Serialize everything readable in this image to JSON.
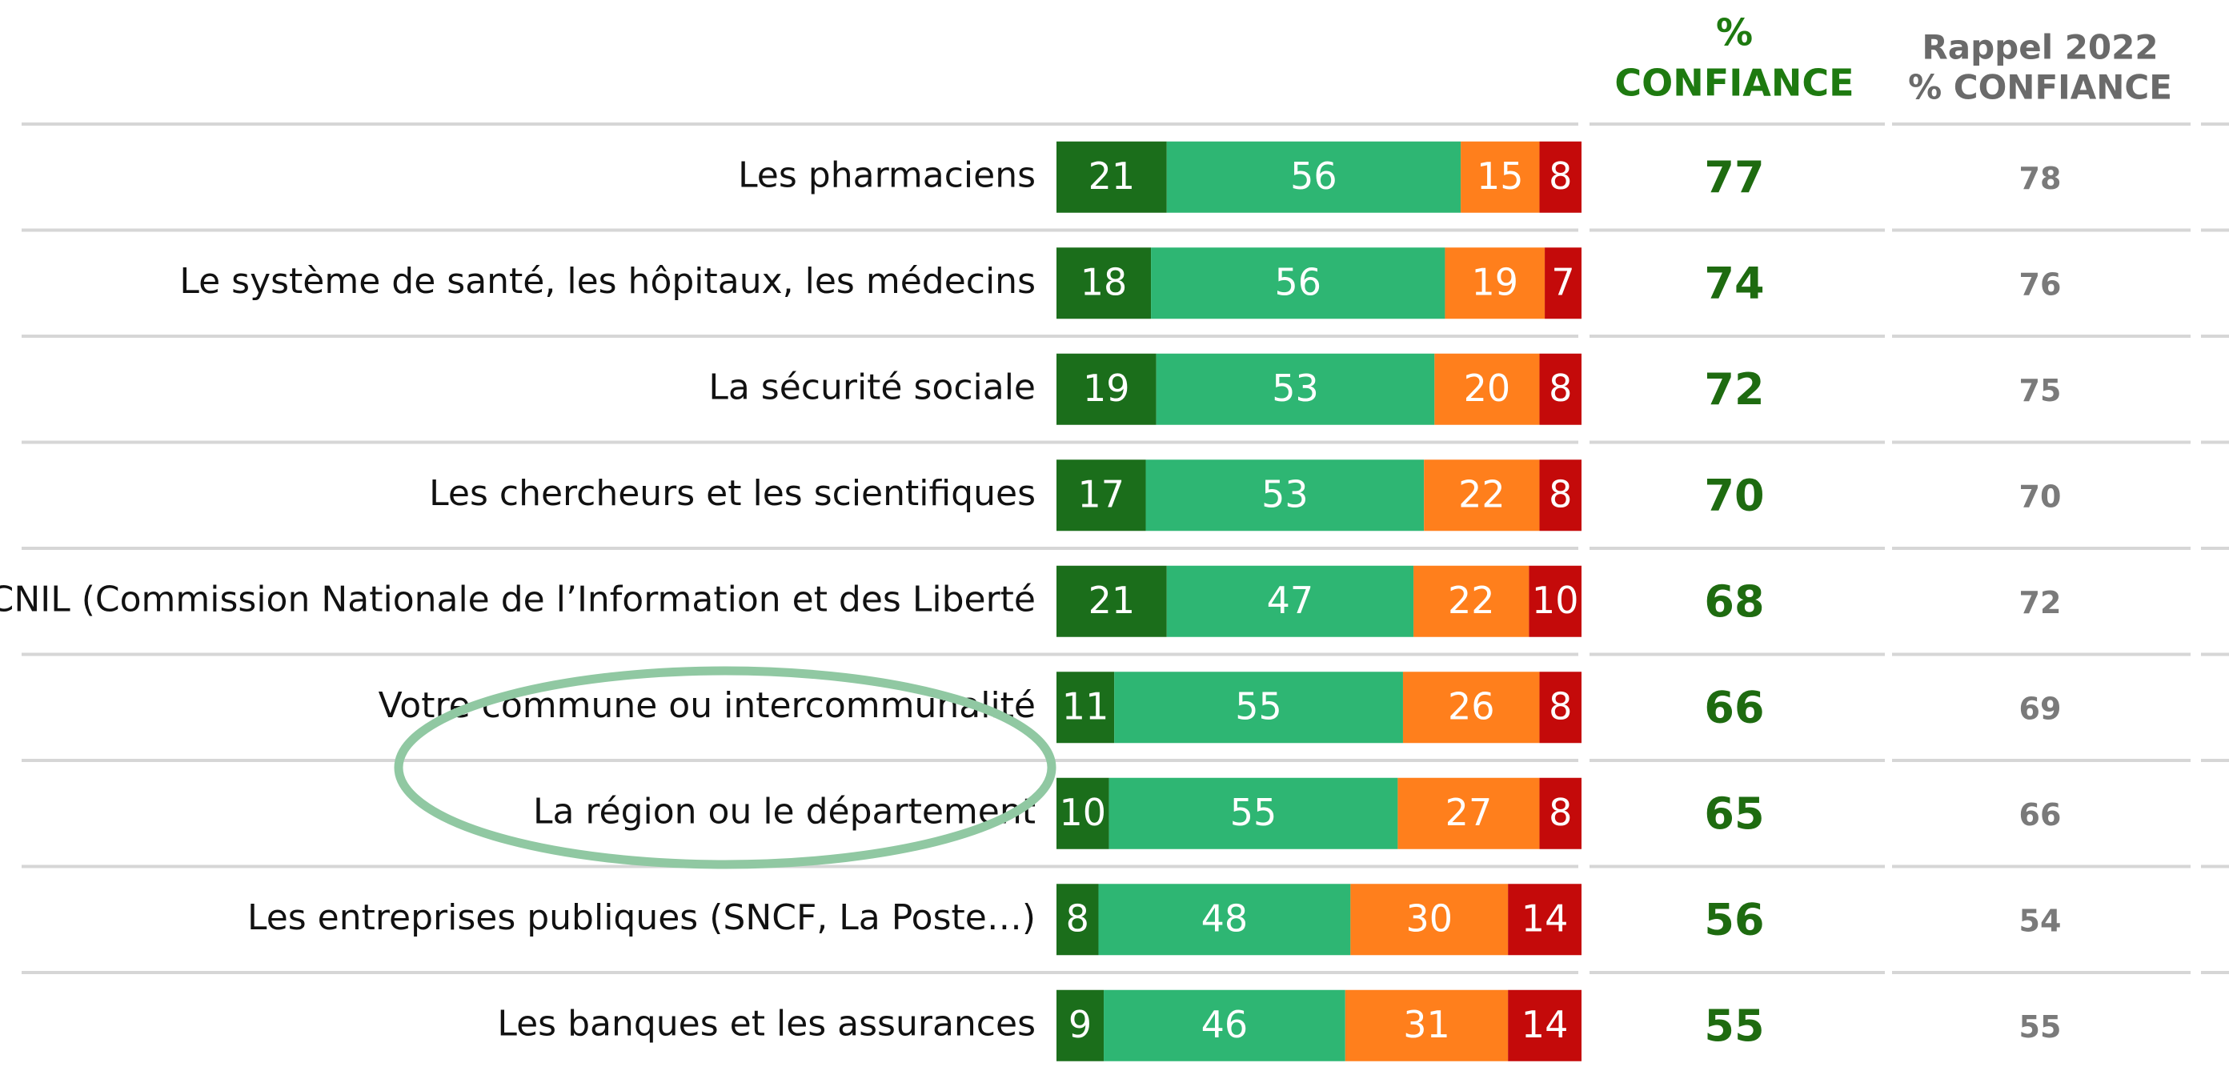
{
  "chart_data": {
    "type": "bar",
    "orientation": "horizontal",
    "stacked": true,
    "categories": [
      "Les pharmaciens",
      "Le système de santé, les hôpitaux, les médecins",
      "La sécurité sociale",
      "Les chercheurs et les scientifiques",
      "La CNIL (Commission Nationale de l’Information et des Liberté",
      "Votre commune ou intercommunalité",
      "La région ou le département",
      "Les entreprises publiques (SNCF, La Poste…)",
      "Les banques et les assurances"
    ],
    "xlim": [
      0,
      100
    ],
    "series": [
      {
        "color": "#1b6e1b",
        "values": [
          21,
          18,
          19,
          17,
          21,
          11,
          10,
          8,
          9
        ]
      },
      {
        "color": "#2eb673",
        "values": [
          56,
          56,
          53,
          53,
          47,
          55,
          55,
          48,
          46
        ]
      },
      {
        "color": "#ff7f1c",
        "values": [
          15,
          19,
          20,
          22,
          22,
          26,
          27,
          30,
          31
        ]
      },
      {
        "color": "#c40a0a",
        "values": [
          8,
          7,
          8,
          8,
          10,
          8,
          8,
          14,
          14
        ]
      }
    ],
    "confiance_header": [
      "%",
      "CONFIANCE"
    ],
    "confiance": [
      77,
      74,
      72,
      70,
      68,
      66,
      65,
      56,
      55
    ],
    "rappel_header": [
      "Rappel 2022",
      "% CONFIANCE"
    ],
    "rappel": [
      78,
      76,
      75,
      70,
      72,
      69,
      66,
      54,
      55
    ]
  }
}
